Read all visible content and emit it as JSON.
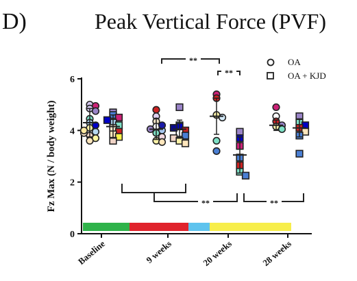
{
  "panel_label": "D)",
  "chart_data": {
    "type": "scatter",
    "title": "Peak Vertical Force (PVF)",
    "xlabel": "",
    "ylabel": "Fz Max (N / body weight)",
    "ylim": [
      0,
      6
    ],
    "yticks": [
      "0",
      "2",
      "4",
      "6"
    ],
    "categories": [
      "Baseline",
      "9 weeks",
      "20 weeks",
      "28 weeks"
    ],
    "legend": [
      {
        "label": "OA",
        "marker": "circle"
      },
      {
        "label": "OA + KJD",
        "marker": "square"
      }
    ],
    "legend_position": "top-right",
    "grid": false,
    "series": [
      {
        "name": "OA",
        "marker": "circle",
        "mean": [
          4.3,
          4.05,
          4.55,
          4.2
        ],
        "sd": [
          0.55,
          0.4,
          0.7,
          0.2
        ],
        "points": [
          [
            {
              "y": 5.0,
              "c": "#d4c7ee"
            },
            {
              "y": 4.95,
              "c": "#cc2277"
            },
            {
              "y": 4.85,
              "c": "#d4c7ee"
            },
            {
              "y": 4.75,
              "c": "#9a84c8"
            },
            {
              "y": 4.45,
              "c": "#7ee0c6"
            },
            {
              "y": 4.3,
              "c": "#a8d0ec"
            },
            {
              "y": 4.1,
              "c": "#fbf2a8"
            },
            {
              "y": 3.95,
              "c": "#b7d8f0"
            },
            {
              "y": 3.8,
              "c": "#f0d4c6"
            },
            {
              "y": 3.7,
              "c": "#fff6a0"
            },
            {
              "y": 3.6,
              "c": "#ffe6bc"
            },
            {
              "y": 3.9,
              "c": "#f9e4c8"
            },
            {
              "y": 4.2,
              "c": "#0000c8"
            },
            {
              "y": 4.0,
              "c": "#ffeaa0"
            }
          ],
          [
            {
              "y": 4.8,
              "c": "#cc2222"
            },
            {
              "y": 4.55,
              "c": "#dcd0f0"
            },
            {
              "y": 4.35,
              "c": "#f4e6c8"
            },
            {
              "y": 4.15,
              "c": "#ffffff"
            },
            {
              "y": 4.0,
              "c": "#a8c8f0"
            },
            {
              "y": 3.9,
              "c": "#7ee0c6"
            },
            {
              "y": 3.75,
              "c": "#f2d8e0"
            },
            {
              "y": 3.6,
              "c": "#fbf2a8"
            },
            {
              "y": 3.55,
              "c": "#ffe6bc"
            },
            {
              "y": 4.2,
              "c": "#1a1aa8"
            },
            {
              "y": 4.05,
              "c": "#9a84c8"
            }
          ],
          [
            {
              "y": 5.4,
              "c": "#cc2277"
            },
            {
              "y": 5.25,
              "c": "#cc2222"
            },
            {
              "y": 4.6,
              "c": "#fbf2a8"
            },
            {
              "y": 4.5,
              "c": "#d4eaf8"
            },
            {
              "y": 3.6,
              "c": "#7ee0c6"
            },
            {
              "y": 3.2,
              "c": "#4a7fd4"
            }
          ],
          [
            {
              "y": 4.9,
              "c": "#cc2277"
            },
            {
              "y": 4.55,
              "c": "#ffffff"
            },
            {
              "y": 4.35,
              "c": "#cc2222"
            },
            {
              "y": 4.2,
              "c": "#9a84c8"
            },
            {
              "y": 4.15,
              "c": "#fbf2a8"
            },
            {
              "y": 4.05,
              "c": "#7ee0c6"
            }
          ]
        ]
      },
      {
        "name": "OA + KJD",
        "marker": "square",
        "mean": [
          4.15,
          4.05,
          3.05,
          4.1
        ],
        "sd": [
          0.45,
          0.35,
          0.7,
          0.35
        ],
        "points": [
          [
            {
              "y": 4.7,
              "c": "#9a84c8"
            },
            {
              "y": 4.6,
              "c": "#4a7fd4"
            },
            {
              "y": 4.5,
              "c": "#cc2277"
            },
            {
              "y": 4.3,
              "c": "#a8d0ec"
            },
            {
              "y": 4.2,
              "c": "#7ee0c6"
            },
            {
              "y": 4.1,
              "c": "#f4e6c8"
            },
            {
              "y": 3.95,
              "c": "#cc2222"
            },
            {
              "y": 3.85,
              "c": "#ffe6bc"
            },
            {
              "y": 3.75,
              "c": "#fff44a"
            },
            {
              "y": 3.6,
              "c": "#f0d4c6"
            },
            {
              "y": 4.4,
              "c": "#0000c8"
            }
          ],
          [
            {
              "y": 4.9,
              "c": "#9a84c8"
            },
            {
              "y": 4.2,
              "c": "#7ee0c6"
            },
            {
              "y": 4.15,
              "c": "#0000c8"
            },
            {
              "y": 4.0,
              "c": "#cc2222"
            },
            {
              "y": 3.9,
              "c": "#ffffff"
            },
            {
              "y": 3.8,
              "c": "#4a7fd4"
            },
            {
              "y": 3.7,
              "c": "#f0d4c6"
            },
            {
              "y": 3.6,
              "c": "#fbf2a8"
            },
            {
              "y": 3.5,
              "c": "#ffe6bc"
            },
            {
              "y": 4.1,
              "c": "#0a0a8a"
            }
          ],
          [
            {
              "y": 3.95,
              "c": "#9a84c8"
            },
            {
              "y": 3.7,
              "c": "#0000c8"
            },
            {
              "y": 3.4,
              "c": "#cc2277"
            },
            {
              "y": 2.95,
              "c": "#4a7fd4"
            },
            {
              "y": 2.65,
              "c": "#cc2222"
            },
            {
              "y": 2.4,
              "c": "#7ee0c6"
            },
            {
              "y": 2.25,
              "c": "#4a7fd4"
            }
          ],
          [
            {
              "y": 4.55,
              "c": "#9a84c8"
            },
            {
              "y": 4.3,
              "c": "#7ee0c6"
            },
            {
              "y": 4.2,
              "c": "#0000c8"
            },
            {
              "y": 4.1,
              "c": "#cc2222"
            },
            {
              "y": 3.95,
              "c": "#ffe6bc"
            },
            {
              "y": 3.8,
              "c": "#4a7fd4"
            },
            {
              "y": 3.1,
              "c": "#4a7fd4"
            }
          ]
        ]
      }
    ],
    "significance": [
      "**",
      "**",
      "**",
      "**"
    ],
    "timeline_colors": [
      "#2fb34a",
      "#e0232c",
      "#5ec3ee",
      "#f7ee4a"
    ]
  }
}
